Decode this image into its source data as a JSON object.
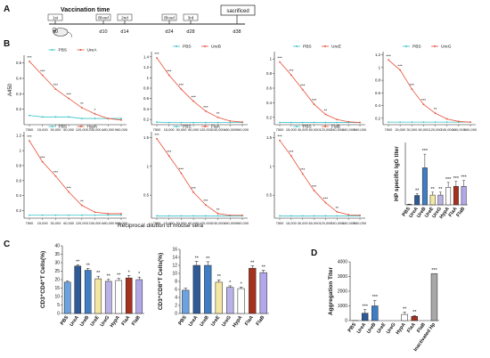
{
  "panels": {
    "A": {
      "letter": "A",
      "title": "Vaccination time",
      "last_event": "sacrificed",
      "events": [
        {
          "day": "d0",
          "marker": "1st"
        },
        {
          "day": "d10",
          "marker": "Blood"
        },
        {
          "day": "d14",
          "marker": "2nd"
        },
        {
          "day": "d24",
          "marker": "Blood"
        },
        {
          "day": "d28",
          "marker": "3rd"
        },
        {
          "day": "d38",
          "marker": "sacrificed"
        }
      ]
    },
    "B": {
      "letter": "B",
      "xlabel": "Reciprocal dilution of mouse sera"
    },
    "C": {
      "letter": "C"
    },
    "D": {
      "letter": "D"
    }
  },
  "colors": {
    "pbs_line": "#3cc3c8",
    "vaccine_line": "#e8503a",
    "PBS": "#6ba3e0",
    "UreA": "#2e5a96",
    "UreB": "#3f7dc4",
    "UreE": "#f3e7a3",
    "UreG": "#b9b2e6",
    "HypA": "#ffffff",
    "FlaA": "#a5301e",
    "FlaB": "#b3a7ea",
    "Inactivated Hp": "#a8a8a8"
  },
  "chart_data": [
    {
      "id": "B1",
      "type": "line",
      "ylabel": "A450",
      "x_ticks": [
        "7500",
        "15,000",
        "30,000",
        "60,000",
        "120,000",
        "240,000",
        "480,000",
        "960,000"
      ],
      "yticks": [
        0.2,
        0.3,
        0.4,
        0.5
      ],
      "ylim": [
        0.1,
        0.55
      ],
      "legend": [
        "PBS",
        "UreA"
      ],
      "legend_position": "top-center",
      "series": [
        {
          "name": "PBS",
          "values": [
            0.16,
            0.15,
            0.15,
            0.15,
            0.14,
            0.14,
            0.14,
            0.14
          ]
        },
        {
          "name": "UreA",
          "values": [
            0.51,
            0.42,
            0.33,
            0.27,
            0.21,
            0.17,
            0.14,
            0.13
          ]
        }
      ],
      "significance": [
        "***",
        "***",
        "***",
        "***",
        "**",
        "*",
        "",
        ""
      ]
    },
    {
      "id": "B2",
      "type": "line",
      "x_ticks": [
        "7500",
        "15,000",
        "30,000",
        "60,000",
        "120,000",
        "240,000",
        "480,000",
        "960,000"
      ],
      "yticks": [
        0.2,
        0.4,
        0.6,
        0.8,
        1.0,
        1.2,
        1.4
      ],
      "ylim": [
        0.1,
        1.5
      ],
      "legend": [
        "PBS",
        "UreB"
      ],
      "legend_position": "top-center",
      "series": [
        {
          "name": "PBS",
          "values": [
            0.15,
            0.14,
            0.14,
            0.14,
            0.14,
            0.14,
            0.14,
            0.14
          ]
        },
        {
          "name": "UreB",
          "values": [
            1.38,
            1.05,
            0.78,
            0.55,
            0.36,
            0.24,
            0.17,
            0.15
          ]
        }
      ],
      "significance": [
        "***",
        "***",
        "***",
        "***",
        "***",
        "**",
        "",
        ""
      ]
    },
    {
      "id": "B3",
      "type": "line",
      "x_ticks": [
        "7500",
        "15,000",
        "30,000",
        "60,000",
        "120,000",
        "240,000",
        "480,000",
        "960,000"
      ],
      "yticks": [
        0.2,
        0.4,
        0.6,
        0.8,
        1.0
      ],
      "ylim": [
        0.1,
        1.1
      ],
      "legend": [
        "PBS",
        "UreE"
      ],
      "legend_position": "top-center",
      "series": [
        {
          "name": "PBS",
          "values": [
            0.13,
            0.13,
            0.13,
            0.13,
            0.13,
            0.13,
            0.13,
            0.13
          ]
        },
        {
          "name": "UreE",
          "values": [
            0.96,
            0.78,
            0.58,
            0.38,
            0.24,
            0.17,
            0.14,
            0.13
          ]
        }
      ],
      "significance": [
        "***",
        "***",
        "***",
        "***",
        "**",
        "",
        "",
        ""
      ]
    },
    {
      "id": "B4",
      "type": "line",
      "x_ticks": [
        "7500",
        "15,000",
        "30,000",
        "60,000",
        "120,000",
        "240,000",
        "480,000",
        "960,000"
      ],
      "yticks": [
        0.2,
        0.4,
        0.6,
        0.8,
        1.0,
        1.2
      ],
      "ylim": [
        0.1,
        1.25
      ],
      "legend": [
        "PBS",
        "UreG"
      ],
      "legend_position": "top-center",
      "series": [
        {
          "name": "PBS",
          "values": [
            0.14,
            0.14,
            0.14,
            0.14,
            0.14,
            0.14,
            0.14,
            0.14
          ]
        },
        {
          "name": "UreG",
          "values": [
            1.12,
            0.96,
            0.66,
            0.42,
            0.28,
            0.19,
            0.15,
            0.14
          ]
        }
      ],
      "significance": [
        "***",
        "***",
        "***",
        "***",
        "**",
        "",
        "",
        ""
      ]
    },
    {
      "id": "B5",
      "type": "line",
      "x_ticks": [
        "7500",
        "15,000",
        "30,000",
        "60,000",
        "120,000",
        "240,000",
        "480,000",
        "960,000"
      ],
      "yticks": [
        0.2,
        0.4,
        0.6,
        0.8,
        1.0,
        1.2
      ],
      "ylim": [
        0.1,
        1.25
      ],
      "legend": [
        "PBS",
        "HypA"
      ],
      "legend_position": "top-center",
      "series": [
        {
          "name": "PBS",
          "values": [
            0.14,
            0.14,
            0.14,
            0.14,
            0.14,
            0.14,
            0.14,
            0.14
          ]
        },
        {
          "name": "HypA",
          "values": [
            1.13,
            0.85,
            0.66,
            0.45,
            0.27,
            0.18,
            0.16,
            0.16
          ]
        }
      ],
      "significance": [
        "***",
        "***",
        "***",
        "***",
        "**",
        "",
        "",
        ""
      ]
    },
    {
      "id": "B6",
      "type": "line",
      "x_ticks": [
        "7500",
        "15,000",
        "30,000",
        "60,000",
        "120,000",
        "240,000",
        "480,000",
        "960,000"
      ],
      "yticks": [
        0.5,
        1.0,
        1.5
      ],
      "ylim": [
        0.1,
        1.6
      ],
      "legend": [
        "PBS",
        "FlaA"
      ],
      "legend_position": "top-center",
      "series": [
        {
          "name": "PBS",
          "values": [
            0.14,
            0.14,
            0.14,
            0.14,
            0.14,
            0.14,
            0.14,
            0.14
          ]
        },
        {
          "name": "FlaA",
          "values": [
            1.48,
            1.18,
            0.88,
            0.55,
            0.33,
            0.18,
            0.15,
            0.15
          ]
        }
      ],
      "significance": [
        "***",
        "***",
        "***",
        "***",
        "***",
        "**",
        "",
        ""
      ]
    },
    {
      "id": "B7",
      "type": "line",
      "x_ticks": [
        "7500",
        "15,000",
        "30,000",
        "60,000",
        "120,000",
        "240,000",
        "480,000",
        "960,000"
      ],
      "yticks": [
        0.5,
        1.0,
        1.5
      ],
      "ylim": [
        0.1,
        1.6
      ],
      "legend": [
        "PBS",
        "FlaB"
      ],
      "legend_position": "top-center",
      "series": [
        {
          "name": "PBS",
          "values": [
            0.14,
            0.14,
            0.14,
            0.14,
            0.14,
            0.14,
            0.14,
            0.14
          ]
        },
        {
          "name": "FlaB",
          "values": [
            1.45,
            1.18,
            0.87,
            0.58,
            0.37,
            0.21,
            0.16,
            0.15
          ]
        }
      ],
      "significance": [
        "***",
        "***",
        "***",
        "***",
        "***",
        "**",
        "",
        ""
      ]
    },
    {
      "id": "B8",
      "type": "bar",
      "ylabel": "HP specific IgG titer",
      "categories": [
        "PBS",
        "UreA",
        "UreB",
        "UreE",
        "UreG",
        "HypA",
        "FlaA",
        "FlaB"
      ],
      "values": [
        2,
        48,
        190,
        50,
        50,
        90,
        95,
        95
      ],
      "errors": [
        1,
        10,
        70,
        15,
        15,
        25,
        25,
        30
      ],
      "ylim": [
        0,
        320
      ],
      "significance": [
        "",
        "**",
        "***",
        "**",
        "**",
        "***",
        "***",
        "***"
      ]
    },
    {
      "id": "C1",
      "type": "bar",
      "ylabel": "CD3⁺CD4⁺T Cells(%)",
      "categories": [
        "PBS",
        "UreA",
        "UreB",
        "UreE",
        "UreG",
        "HypA",
        "FlaA",
        "FlaB"
      ],
      "values": [
        18.5,
        28,
        25.5,
        20.5,
        19,
        19.5,
        21,
        20
      ],
      "errors": [
        0.8,
        0.8,
        1.2,
        1.5,
        1.2,
        1.2,
        1.5,
        1.5
      ],
      "yticks": [
        0,
        5,
        10,
        15,
        20,
        25,
        30,
        35,
        40
      ],
      "ylim": [
        0,
        40
      ],
      "significance": [
        "",
        "**",
        "**",
        "**",
        "**",
        "**",
        "*",
        "*"
      ]
    },
    {
      "id": "C2",
      "type": "bar",
      "ylabel": "CD3⁺CD8⁺T Cells(%)",
      "categories": [
        "PBS",
        "UreA",
        "UreB",
        "UreE",
        "UreG",
        "HypA",
        "FlaA",
        "FlaB"
      ],
      "values": [
        5.8,
        12,
        12,
        7.8,
        6.5,
        6.2,
        11.3,
        10.2
      ],
      "errors": [
        0.5,
        1.0,
        0.9,
        0.6,
        0.4,
        0.4,
        0.6,
        0.6
      ],
      "yticks": [
        0,
        2,
        4,
        6,
        8,
        10,
        12,
        14,
        16
      ],
      "ylim": [
        0,
        16
      ],
      "significance": [
        "",
        "**",
        "**",
        "**",
        "*",
        "*",
        "**",
        "**"
      ]
    },
    {
      "id": "D",
      "type": "bar",
      "ylabel": "Aggregation Titer",
      "categories": [
        "PBS",
        "UreA",
        "UreB",
        "UreE",
        "UreG",
        "HypA",
        "FlaA",
        "FlaB",
        "Inactivated Hp"
      ],
      "values": [
        5,
        500,
        1000,
        0,
        0,
        420,
        290,
        0,
        3200
      ],
      "errors": [
        0,
        250,
        380,
        0,
        0,
        160,
        60,
        0,
        0
      ],
      "yticks": [
        0,
        1000,
        2000,
        3000,
        4000
      ],
      "ylim": [
        0,
        4000
      ],
      "significance": [
        "",
        "***",
        "***",
        "",
        "",
        "**",
        "**",
        "",
        "***"
      ]
    }
  ]
}
